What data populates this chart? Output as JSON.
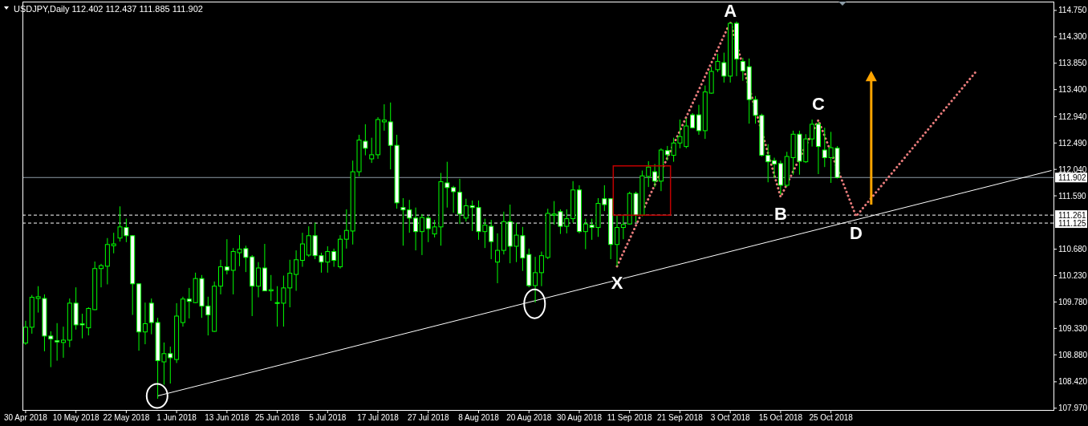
{
  "chart_data": {
    "type": "candlestick",
    "title": "USDJPY,Daily 112.402 112.437 111.885 111.902",
    "categories": [
      "30 Apr 2018",
      null,
      null,
      null,
      null,
      null,
      null,
      null,
      "10 May 2018",
      null,
      null,
      null,
      null,
      null,
      null,
      null,
      "22 May 2018",
      null,
      null,
      null,
      null,
      null,
      null,
      null,
      "1 Jun 2018",
      null,
      null,
      null,
      null,
      null,
      null,
      null,
      "13 Jun 2018",
      null,
      null,
      null,
      null,
      null,
      null,
      null,
      "25 Jun 2018",
      null,
      null,
      null,
      null,
      null,
      null,
      null,
      "5 Jul 2018",
      null,
      null,
      null,
      null,
      null,
      null,
      null,
      "17 Jul 2018",
      null,
      null,
      null,
      null,
      null,
      null,
      null,
      "27 Jul 2018",
      null,
      null,
      null,
      null,
      null,
      null,
      null,
      "8 Aug 2018",
      null,
      null,
      null,
      null,
      null,
      null,
      null,
      "20 Aug 2018",
      null,
      null,
      null,
      null,
      null,
      null,
      null,
      "30 Aug 2018",
      null,
      null,
      null,
      null,
      null,
      null,
      null,
      "11 Sep 2018",
      null,
      null,
      null,
      null,
      null,
      null,
      null,
      "21 Sep 2018",
      null,
      null,
      null,
      null,
      null,
      null,
      null,
      "3 Oct 2018",
      null,
      null,
      null,
      null,
      null,
      null,
      null,
      "15 Oct 2018",
      null,
      null,
      null,
      null,
      null,
      null,
      null,
      "25 Oct 2018",
      null,
      null,
      null,
      null,
      null,
      null,
      null,
      null,
      null,
      null,
      null,
      null,
      null,
      null,
      null,
      null,
      null,
      null,
      null,
      null,
      null,
      null,
      null,
      null,
      null,
      null,
      null,
      null,
      null,
      null,
      null,
      null,
      null,
      null,
      null
    ],
    "ohlc": [
      [
        109.08,
        109.46,
        109.05,
        109.35
      ],
      [
        109.35,
        109.9,
        109.24,
        109.86
      ],
      [
        109.84,
        110.05,
        109.6,
        109.87
      ],
      [
        109.84,
        109.91,
        108.94,
        109.2
      ],
      [
        109.2,
        109.28,
        108.67,
        109.15
      ],
      [
        109.12,
        109.42,
        108.78,
        109.1
      ],
      [
        109.09,
        109.36,
        108.83,
        109.13
      ],
      [
        109.13,
        109.84,
        109.01,
        109.76
      ],
      [
        109.76,
        110.03,
        109.31,
        109.39
      ],
      [
        109.41,
        109.58,
        109.16,
        109.39
      ],
      [
        109.34,
        109.69,
        109.21,
        109.67
      ],
      [
        109.65,
        110.47,
        109.64,
        110.35
      ],
      [
        110.35,
        110.43,
        110.03,
        110.4
      ],
      [
        110.39,
        110.87,
        110.08,
        110.76
      ],
      [
        110.74,
        110.96,
        110.61,
        110.77
      ],
      [
        110.87,
        111.41,
        110.81,
        111.06
      ],
      [
        111.05,
        111.2,
        110.8,
        110.91
      ],
      [
        110.91,
        110.92,
        109.56,
        110.09
      ],
      [
        110.09,
        110.1,
        108.95,
        109.27
      ],
      [
        109.27,
        109.77,
        109.06,
        109.41
      ],
      [
        109.76,
        109.84,
        109.23,
        109.43
      ],
      [
        109.43,
        109.51,
        108.13,
        108.78
      ],
      [
        108.76,
        109.09,
        108.37,
        108.9
      ],
      [
        108.9,
        109.02,
        108.39,
        108.83
      ],
      [
        108.8,
        109.76,
        108.74,
        109.54
      ],
      [
        109.43,
        109.87,
        109.36,
        109.83
      ],
      [
        109.83,
        110.02,
        109.5,
        109.79
      ],
      [
        109.77,
        110.28,
        109.76,
        110.18
      ],
      [
        110.18,
        110.24,
        109.51,
        109.71
      ],
      [
        109.71,
        109.87,
        109.21,
        109.56
      ],
      [
        109.28,
        110.13,
        109.27,
        110.05
      ],
      [
        110.05,
        110.5,
        109.91,
        110.38
      ],
      [
        110.38,
        110.85,
        110.25,
        110.32
      ],
      [
        110.32,
        110.7,
        109.91,
        110.64
      ],
      [
        110.62,
        110.92,
        110.39,
        110.68
      ],
      [
        110.69,
        110.74,
        110.29,
        110.54
      ],
      [
        110.55,
        110.58,
        109.54,
        110.05
      ],
      [
        110.05,
        110.46,
        109.86,
        110.36
      ],
      [
        110.36,
        110.77,
        109.97,
        109.97
      ],
      [
        109.97,
        110.24,
        109.8,
        109.99
      ],
      [
        109.77,
        110.05,
        109.36,
        109.76
      ],
      [
        109.76,
        110.23,
        109.36,
        110.02
      ],
      [
        110.02,
        110.5,
        109.69,
        110.27
      ],
      [
        110.25,
        110.66,
        109.97,
        110.5
      ],
      [
        110.49,
        110.96,
        110.38,
        110.77
      ],
      [
        110.58,
        111.07,
        110.55,
        110.91
      ],
      [
        110.91,
        111.13,
        110.51,
        110.57
      ],
      [
        110.57,
        110.62,
        110.28,
        110.46
      ],
      [
        110.46,
        110.73,
        110.28,
        110.64
      ],
      [
        110.64,
        110.69,
        110.38,
        110.49
      ],
      [
        110.38,
        110.92,
        110.35,
        110.85
      ],
      [
        110.85,
        111.36,
        110.69,
        111.0
      ],
      [
        110.99,
        112.19,
        110.76,
        112.0
      ],
      [
        112.0,
        112.63,
        111.92,
        112.54
      ],
      [
        112.52,
        112.81,
        112.28,
        112.4
      ],
      [
        112.22,
        112.58,
        112.15,
        112.29
      ],
      [
        112.29,
        112.93,
        112.22,
        112.89
      ],
      [
        112.85,
        113.15,
        112.7,
        112.88
      ],
      [
        112.85,
        113.18,
        112.04,
        112.45
      ],
      [
        112.45,
        112.63,
        111.37,
        111.47
      ],
      [
        111.39,
        111.55,
        110.74,
        111.35
      ],
      [
        111.35,
        111.52,
        110.96,
        111.21
      ],
      [
        111.21,
        111.39,
        110.66,
        110.98
      ],
      [
        110.98,
        111.28,
        110.58,
        111.22
      ],
      [
        111.21,
        111.25,
        110.8,
        111.03
      ],
      [
        110.94,
        111.18,
        110.88,
        111.06
      ],
      [
        111.06,
        111.98,
        110.74,
        111.83
      ],
      [
        111.81,
        112.17,
        111.39,
        111.73
      ],
      [
        111.73,
        111.76,
        111.3,
        111.66
      ],
      [
        111.65,
        111.88,
        111.11,
        111.28
      ],
      [
        111.21,
        111.54,
        111.15,
        111.42
      ],
      [
        111.42,
        111.51,
        110.99,
        111.39
      ],
      [
        111.39,
        111.51,
        110.84,
        110.98
      ],
      [
        110.98,
        111.2,
        110.7,
        111.09
      ],
      [
        111.07,
        111.18,
        110.51,
        110.81
      ],
      [
        110.46,
        110.95,
        110.1,
        110.66
      ],
      [
        110.66,
        111.32,
        110.59,
        111.15
      ],
      [
        111.15,
        111.44,
        110.44,
        110.73
      ],
      [
        110.73,
        111.13,
        110.46,
        110.92
      ],
      [
        110.91,
        111.06,
        110.31,
        110.53
      ],
      [
        110.59,
        110.69,
        110.03,
        110.06
      ],
      [
        110.06,
        110.55,
        109.77,
        110.28
      ],
      [
        110.28,
        110.64,
        110.05,
        110.57
      ],
      [
        110.54,
        111.37,
        110.51,
        111.29
      ],
      [
        111.26,
        111.5,
        111.1,
        111.28
      ],
      [
        111.32,
        111.36,
        110.94,
        111.07
      ],
      [
        111.07,
        111.36,
        110.95,
        111.2
      ],
      [
        111.2,
        111.84,
        111.13,
        111.69
      ],
      [
        111.69,
        111.77,
        110.95,
        110.98
      ],
      [
        110.98,
        111.2,
        110.68,
        111.11
      ],
      [
        111.09,
        111.2,
        110.84,
        111.05
      ],
      [
        111.05,
        111.55,
        110.89,
        111.46
      ],
      [
        111.54,
        111.77,
        111.33,
        111.44
      ],
      [
        111.54,
        111.55,
        110.51,
        110.76
      ],
      [
        110.76,
        111.26,
        110.39,
        111.05
      ],
      [
        111.05,
        111.26,
        110.85,
        111.1
      ],
      [
        111.11,
        111.66,
        111.1,
        111.63
      ],
      [
        111.63,
        111.66,
        111.14,
        111.26
      ],
      [
        111.26,
        112.02,
        111.24,
        111.93
      ],
      [
        111.92,
        112.18,
        111.74,
        112.08
      ],
      [
        112.0,
        112.13,
        111.74,
        111.84
      ],
      [
        111.84,
        112.4,
        111.67,
        112.37
      ],
      [
        112.36,
        112.44,
        112.19,
        112.29
      ],
      [
        112.28,
        112.58,
        112.17,
        112.49
      ],
      [
        112.49,
        112.89,
        112.4,
        112.6
      ],
      [
        112.43,
        112.91,
        112.4,
        112.78
      ],
      [
        112.97,
        113.0,
        112.74,
        112.75
      ],
      [
        112.97,
        113.14,
        112.63,
        112.7
      ],
      [
        112.7,
        113.47,
        112.56,
        113.36
      ],
      [
        113.34,
        113.79,
        113.33,
        113.71
      ],
      [
        113.74,
        114.01,
        113.7,
        113.88
      ],
      [
        113.86,
        114.03,
        113.52,
        113.63
      ],
      [
        113.63,
        114.55,
        113.52,
        114.53
      ],
      [
        114.53,
        114.56,
        113.63,
        113.92
      ],
      [
        113.88,
        113.94,
        113.55,
        113.72
      ],
      [
        113.79,
        113.93,
        112.82,
        113.23
      ],
      [
        113.23,
        113.29,
        112.82,
        112.96
      ],
      [
        112.96,
        112.99,
        112.26,
        112.28
      ],
      [
        112.28,
        112.47,
        111.82,
        112.17
      ],
      [
        112.19,
        112.24,
        111.89,
        112.13
      ],
      [
        112.14,
        112.19,
        111.61,
        111.77
      ],
      [
        111.77,
        112.34,
        111.74,
        112.26
      ],
      [
        112.24,
        112.7,
        111.95,
        112.64
      ],
      [
        112.64,
        112.7,
        111.95,
        112.18
      ],
      [
        112.17,
        112.64,
        112.15,
        112.56
      ],
      [
        112.56,
        112.89,
        112.43,
        112.81
      ],
      [
        112.81,
        112.85,
        111.96,
        112.43
      ],
      [
        112.37,
        112.75,
        112.08,
        112.24
      ],
      [
        112.24,
        112.68,
        111.81,
        112.41
      ],
      [
        112.402,
        112.437,
        111.885,
        111.902
      ],
      null,
      null,
      null,
      null,
      null,
      null,
      null,
      null,
      null,
      null,
      null,
      null,
      null,
      null,
      null,
      null,
      null,
      null,
      null,
      null,
      null,
      null,
      null,
      null,
      null,
      null,
      null,
      null,
      null,
      null,
      null,
      null,
      null,
      null
    ],
    "color": "#00ff00",
    "series": [
      {
        "type": "line",
        "color": "#ffffff",
        "line_style": "solid",
        "values": [
          null,
          null,
          null,
          null,
          null,
          null,
          null,
          null,
          null,
          null,
          null,
          null,
          null,
          null,
          null,
          null,
          null,
          null,
          null,
          null,
          null,
          108.18,
          null,
          null,
          null,
          null,
          null,
          null,
          null,
          null,
          null,
          null,
          null,
          null,
          null,
          null,
          null,
          null,
          null,
          null,
          null,
          null,
          null,
          null,
          null,
          null,
          null,
          null,
          null,
          null,
          null,
          null,
          null,
          null,
          null,
          null,
          null,
          null,
          null,
          null,
          null,
          null,
          null,
          null,
          null,
          null,
          null,
          null,
          null,
          null,
          null,
          null,
          null,
          null,
          null,
          null,
          null,
          null,
          null,
          null,
          null,
          null,
          null,
          null,
          null,
          null,
          null,
          null,
          null,
          null,
          null,
          null,
          null,
          null,
          null,
          null,
          null,
          null,
          null,
          null,
          null,
          null,
          null,
          null,
          null,
          null,
          null,
          null,
          null,
          null,
          null,
          null,
          null,
          null,
          null,
          null,
          null,
          null,
          null,
          null,
          null,
          null,
          null,
          null,
          null,
          null,
          null,
          null,
          null,
          null,
          null,
          null,
          null,
          null,
          null,
          null,
          null,
          null,
          null,
          null,
          null,
          null,
          null,
          null,
          null,
          null,
          null,
          null,
          null,
          null,
          null,
          null,
          null,
          null,
          null,
          null,
          null,
          null,
          null,
          null,
          null,
          null,
          null,
          112.02
        ]
      },
      {
        "type": "line",
        "color": "#e87b7b",
        "line_style": "dotted",
        "values": [
          null,
          null,
          null,
          null,
          null,
          null,
          null,
          null,
          null,
          null,
          null,
          null,
          null,
          null,
          null,
          null,
          null,
          null,
          null,
          null,
          null,
          null,
          null,
          null,
          null,
          null,
          null,
          null,
          null,
          null,
          null,
          null,
          null,
          null,
          null,
          null,
          null,
          null,
          null,
          null,
          null,
          null,
          null,
          null,
          null,
          null,
          null,
          null,
          null,
          null,
          null,
          null,
          null,
          null,
          null,
          null,
          null,
          null,
          null,
          null,
          null,
          null,
          null,
          null,
          null,
          null,
          null,
          null,
          null,
          null,
          null,
          null,
          null,
          null,
          null,
          null,
          null,
          null,
          null,
          null,
          null,
          null,
          null,
          null,
          null,
          null,
          null,
          null,
          null,
          null,
          null,
          null,
          null,
          null,
          110.39,
          null,
          null,
          null,
          null,
          null,
          null,
          null,
          null,
          null,
          null,
          null,
          null,
          null,
          null,
          null,
          null,
          null,
          114.55,
          null,
          null,
          null,
          null,
          null,
          null,
          null,
          111.57,
          null,
          null,
          null,
          null,
          null,
          112.88,
          null,
          null,
          null,
          null,
          null,
          111.24,
          null,
          null,
          null,
          null,
          null,
          null,
          null,
          null,
          null,
          null,
          null,
          null,
          null,
          null,
          null,
          null,
          null,
          null,
          113.7,
          null,
          null,
          null,
          null,
          null,
          null,
          null,
          null,
          null,
          null,
          null,
          null
        ]
      }
    ],
    "annotations": [
      {
        "text": "X",
        "y": 110.39
      },
      {
        "text": "A",
        "y": 114.55
      },
      {
        "text": "B",
        "y": 111.57
      },
      {
        "text": "C",
        "y": 112.88
      },
      {
        "text": "D",
        "y": 111.24
      }
    ],
    "ref_lines": [
      {
        "axis": "y",
        "value": 111.902,
        "label": "111.902",
        "color": "#8c9ba5",
        "line_style": "solid"
      },
      {
        "axis": "y",
        "value": 111.261,
        "label": "111.261",
        "color": "#ffffff",
        "line_style": "dashed"
      },
      {
        "axis": "y",
        "value": 111.125,
        "label": "111.125",
        "color": "#ffffff",
        "line_style": "dashed"
      }
    ],
    "ylim": [
      107.94,
      114.9
    ],
    "yticks": [
      {
        "value": 114.75,
        "label": "114.750"
      },
      {
        "value": 114.3,
        "label": "114.300"
      },
      {
        "value": 113.85,
        "label": "113.850"
      },
      {
        "value": 113.4,
        "label": "113.400"
      },
      {
        "value": 112.94,
        "label": "112.940"
      },
      {
        "value": 112.49,
        "label": "112.490"
      },
      {
        "value": 112.04,
        "label": "112.040"
      },
      {
        "value": 111.59,
        "label": "111.590"
      },
      {
        "value": 110.68,
        "label": "110.680"
      },
      {
        "value": 110.23,
        "label": "110.230"
      },
      {
        "value": 109.78,
        "label": "109.780"
      },
      {
        "value": 109.33,
        "label": "109.330"
      },
      {
        "value": 108.88,
        "label": "108.880"
      },
      {
        "value": 108.42,
        "label": "108.420"
      },
      {
        "value": 107.97,
        "label": "107.970"
      }
    ]
  }
}
